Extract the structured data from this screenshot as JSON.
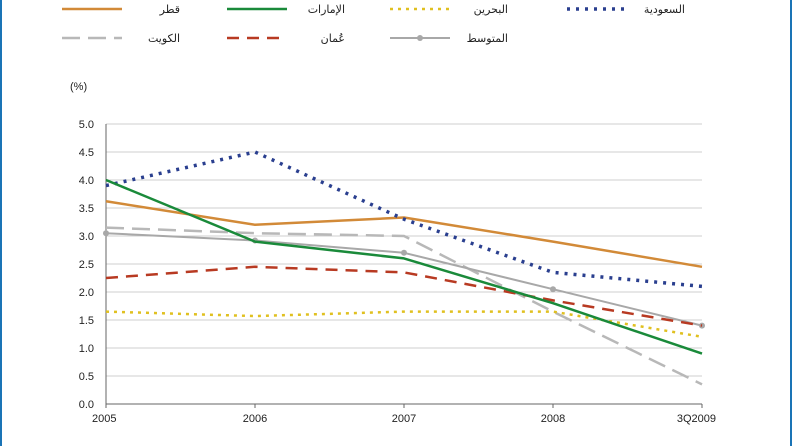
{
  "chart_data": {
    "type": "line",
    "ylabel": "(%)",
    "categories": [
      "2005",
      "2006",
      "2007",
      "2008",
      "3Q2009"
    ],
    "ylim": [
      0,
      5
    ],
    "yticks": [
      "0.0",
      "0.5",
      "1.0",
      "1.5",
      "2.0",
      "2.5",
      "3.0",
      "3.5",
      "4.0",
      "4.5",
      "5.0"
    ],
    "grid": true,
    "legend_position": "top",
    "series": [
      {
        "name": "السعودية",
        "color": "#2a3f8f",
        "dash": "dot-heavy",
        "values": [
          3.9,
          4.5,
          3.3,
          2.35,
          2.1
        ]
      },
      {
        "name": "البحرين",
        "color": "#e0c020",
        "dash": "dot",
        "values": [
          1.65,
          1.57,
          1.65,
          1.65,
          1.2
        ]
      },
      {
        "name": "الإمارات",
        "color": "#1a8a3a",
        "dash": "solid",
        "values": [
          4.0,
          2.9,
          2.6,
          1.8,
          0.9
        ]
      },
      {
        "name": "قطر",
        "color": "#d28a38",
        "dash": "solid",
        "values": [
          3.62,
          3.2,
          3.33,
          2.9,
          2.45
        ]
      },
      {
        "name": "المتوسط",
        "color": "#a8a8a8",
        "dash": "marker",
        "values": [
          3.05,
          2.92,
          2.7,
          2.05,
          1.4
        ]
      },
      {
        "name": "عُمان",
        "color": "#b83a22",
        "dash": "dash",
        "values": [
          2.25,
          2.45,
          2.35,
          1.85,
          1.4
        ]
      },
      {
        "name": "الكويت",
        "color": "#b8b8b8",
        "dash": "dash-long",
        "values": [
          3.15,
          3.05,
          3.0,
          1.65,
          0.35
        ]
      }
    ]
  }
}
